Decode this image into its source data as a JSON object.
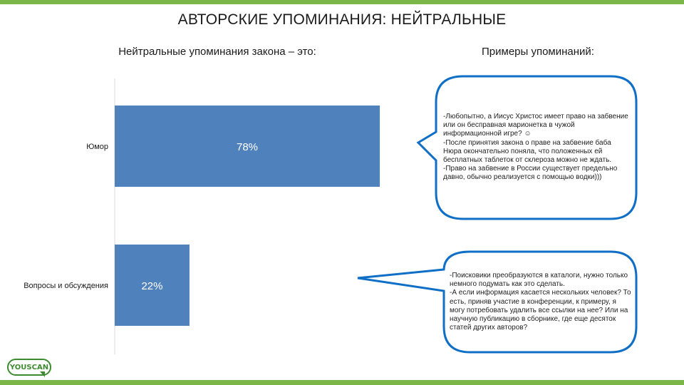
{
  "header": {
    "title": "АВТОРСКИЕ УПОМИНАНИЯ: НЕЙТРАЛЬНЫЕ",
    "left_subtitle": "Нейтральные упоминания закона – это:",
    "right_subtitle": "Примеры упоминаний:"
  },
  "chart_data": {
    "type": "bar",
    "orientation": "horizontal",
    "categories": [
      "Юмор",
      "Вопросы и обсуждения"
    ],
    "values": [
      78,
      22
    ],
    "value_labels": [
      "78%",
      "22%"
    ],
    "xlim": [
      0,
      100
    ],
    "grid": false,
    "bar_color": "#4f81bd"
  },
  "bubbles": [
    {
      "text": "-Любопытно, а Иисус Христос имеет право на забвение или он бесправная марионетка в чужой информационной игре? ☺\n-После принятия закона о праве на забвение баба Нюра окончательно поняла, что положенных ей бесплатных таблеток от склероза можно не ждать.\n-Право на забвение в России существует предельно давно, обычно реализуется с помощью водки)))"
    },
    {
      "text": "-Поисковики преобразуются в каталоги, нужно только немного подумать как это сделать.\n-А если информация касается нескольких человек? То есть, приняв участие в конференции, к примеру, я могу потребовать удалить все ссылки на нее? Или на научную публикацию в сборнике, где еще десяток статей других авторов?"
    }
  ],
  "logo": {
    "text": "YOUSCAN"
  },
  "colors": {
    "accent_green": "#7ab648",
    "bubble_border": "#0f6fc6",
    "bar": "#4f81bd"
  }
}
